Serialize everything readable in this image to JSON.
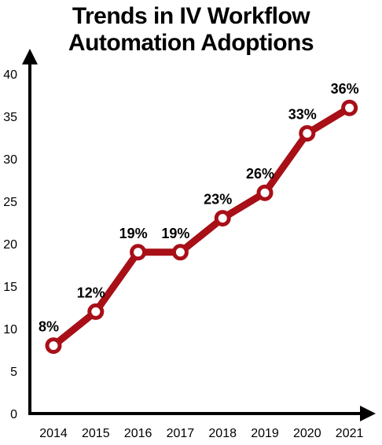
{
  "chart_data": {
    "type": "line",
    "title_line1": "Trends in IV Workflow",
    "title_line2": "Automation Adoptions",
    "categories": [
      "2014",
      "2015",
      "2016",
      "2017",
      "2018",
      "2019",
      "2020",
      "2021"
    ],
    "values": [
      8,
      12,
      19,
      19,
      23,
      26,
      33,
      36
    ],
    "data_labels": [
      "8%",
      "12%",
      "19%",
      "19%",
      "23%",
      "26%",
      "33%",
      "36%"
    ],
    "ylim": [
      0,
      40
    ],
    "yticks": [
      "0",
      "5",
      "10",
      "15",
      "20",
      "25",
      "30",
      "35",
      "40"
    ],
    "grid": false,
    "line_color": "#a80f17",
    "marker_fill": "#ffffff"
  }
}
